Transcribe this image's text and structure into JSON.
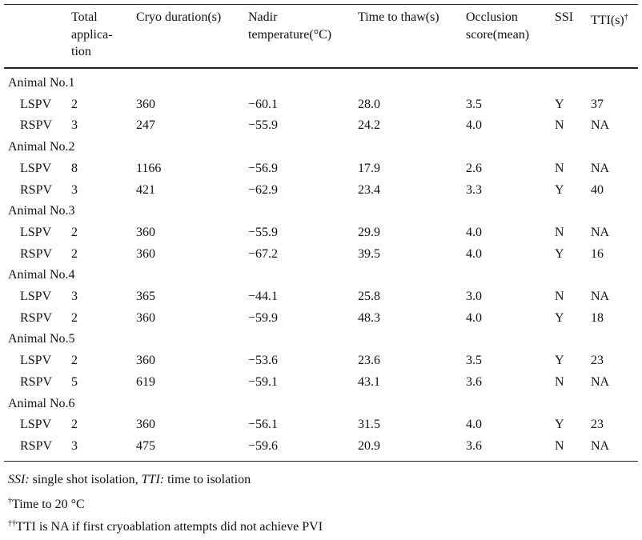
{
  "table": {
    "headers": [
      {
        "lines": [
          "Total",
          "applica-",
          "tion"
        ]
      },
      {
        "lines": [
          "Cryo duration(s)"
        ]
      },
      {
        "lines": [
          "Nadir",
          "temperature(°C)"
        ]
      },
      {
        "lines": [
          "Time to thaw(s)"
        ]
      },
      {
        "lines": [
          "Occlusion",
          "score(mean)"
        ]
      },
      {
        "lines": [
          "SSI"
        ]
      },
      {
        "lines": [
          "TTI(s)"
        ],
        "sup": "†"
      }
    ],
    "groups": [
      {
        "label": "Animal No.1",
        "rows": [
          [
            "LSPV",
            "2",
            "360",
            "−60.1",
            "28.0",
            "3.5",
            "Y",
            "37"
          ],
          [
            "RSPV",
            "3",
            "247",
            "−55.9",
            "24.2",
            "4.0",
            "N",
            "NA"
          ]
        ]
      },
      {
        "label": "Animal No.2",
        "rows": [
          [
            "LSPV",
            "8",
            "1166",
            "−56.9",
            "17.9",
            "2.6",
            "N",
            "NA"
          ],
          [
            "RSPV",
            "3",
            "421",
            "−62.9",
            "23.4",
            "3.3",
            "Y",
            "40"
          ]
        ]
      },
      {
        "label": "Animal No.3",
        "rows": [
          [
            "LSPV",
            "2",
            "360",
            "−55.9",
            "29.9",
            "4.0",
            "N",
            "NA"
          ],
          [
            "RSPV",
            "2",
            "360",
            "−67.2",
            "39.5",
            "4.0",
            "Y",
            "16"
          ]
        ]
      },
      {
        "label": "Animal No.4",
        "rows": [
          [
            "LSPV",
            "3",
            "365",
            "−44.1",
            "25.8",
            "3.0",
            "N",
            "NA"
          ],
          [
            "RSPV",
            "2",
            "360",
            "−59.9",
            "48.3",
            "4.0",
            "Y",
            "18"
          ]
        ]
      },
      {
        "label": "Animal No.5",
        "rows": [
          [
            "LSPV",
            "2",
            "360",
            "−53.6",
            "23.6",
            "3.5",
            "Y",
            "23"
          ],
          [
            "RSPV",
            "5",
            "619",
            "−59.1",
            "43.1",
            "3.6",
            "N",
            "NA"
          ]
        ]
      },
      {
        "label": "Animal No.6",
        "rows": [
          [
            "LSPV",
            "2",
            "360",
            "−56.1",
            "31.5",
            "4.0",
            "Y",
            "23"
          ],
          [
            "RSPV",
            "3",
            "475",
            "−59.6",
            "20.9",
            "3.6",
            "N",
            "NA"
          ]
        ]
      }
    ]
  },
  "footnotes": [
    {
      "parts": [
        {
          "text": "SSI:",
          "italic": true
        },
        {
          "text": " single shot isolation, "
        },
        {
          "text": "TTI:",
          "italic": true
        },
        {
          "text": " time to isolation"
        }
      ]
    },
    {
      "sup": "†",
      "text": "Time to 20 °C"
    },
    {
      "sup": "††",
      "text": "TTI is NA if first cryoablation attempts did not achieve PVI"
    }
  ]
}
